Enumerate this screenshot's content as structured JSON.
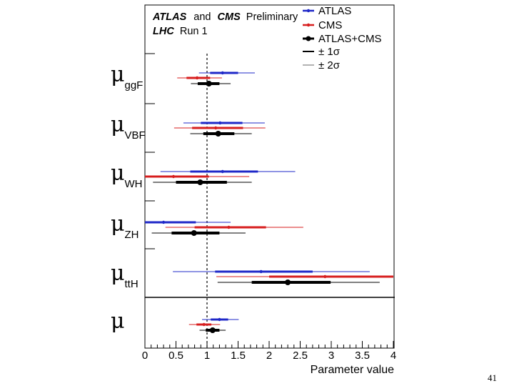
{
  "chart_data": {
    "type": "scatter",
    "variant": "forest-plot",
    "header": {
      "experiments": "ATLAS",
      "conjunction": "and",
      "experiment2": "CMS",
      "status": "Preliminary",
      "machine": "LHC",
      "run": "Run 1"
    },
    "xlabel": "Parameter value",
    "xlim": [
      0,
      4
    ],
    "xticks": [
      "0",
      "0.5",
      "1",
      "1.5",
      "2",
      "2.5",
      "3",
      "3.5",
      "4"
    ],
    "reference_line": 1,
    "parameters": [
      {
        "symbol": "μ",
        "subscript": "ggF"
      },
      {
        "symbol": "μ",
        "subscript": "VBF"
      },
      {
        "symbol": "μ",
        "subscript": "WH"
      },
      {
        "symbol": "μ",
        "subscript": "ZH"
      },
      {
        "symbol": "μ",
        "subscript": "ttH"
      },
      {
        "symbol": "μ",
        "subscript": ""
      }
    ],
    "series": [
      {
        "name": "ATLAS",
        "color": "#1f28c8",
        "points": [
          {
            "value": 1.25,
            "sigma1": [
              1.05,
              1.5
            ],
            "sigma2": [
              0.87,
              1.77
            ]
          },
          {
            "value": 1.21,
            "sigma1": [
              0.9,
              1.57
            ],
            "sigma2": [
              0.62,
              1.93
            ]
          },
          {
            "value": 1.25,
            "sigma1": [
              0.73,
              1.82
            ],
            "sigma2": [
              0.25,
              2.42
            ]
          },
          {
            "value": 0.3,
            "sigma1": [
              0.0,
              0.82
            ],
            "sigma2": [
              0.0,
              1.38
            ]
          },
          {
            "value": 1.87,
            "sigma1": [
              1.13,
              2.7
            ],
            "sigma2": [
              0.45,
              3.62
            ]
          },
          {
            "value": 1.2,
            "sigma1": [
              1.06,
              1.34
            ],
            "sigma2": [
              0.92,
              1.51
            ]
          }
        ]
      },
      {
        "name": "CMS",
        "color": "#d71e1e",
        "points": [
          {
            "value": 0.84,
            "sigma1": [
              0.67,
              1.05
            ],
            "sigma2": [
              0.52,
              1.24
            ]
          },
          {
            "value": 1.14,
            "sigma1": [
              0.76,
              1.58
            ],
            "sigma2": [
              0.47,
              1.94
            ]
          },
          {
            "value": 0.46,
            "sigma1": [
              0.0,
              1.03
            ],
            "sigma2": [
              0.0,
              1.68
            ]
          },
          {
            "value": 1.35,
            "sigma1": [
              0.8,
              1.95
            ],
            "sigma2": [
              0.33,
              2.55
            ]
          },
          {
            "value": 2.9,
            "sigma1": [
              2.0,
              4.0
            ],
            "sigma2": [
              1.15,
              4.0
            ]
          },
          {
            "value": 0.95,
            "sigma1": [
              0.83,
              1.07
            ],
            "sigma2": [
              0.71,
              1.21
            ]
          }
        ]
      },
      {
        "name": "ATLAS+CMS",
        "color": "#000000",
        "points": [
          {
            "value": 1.03,
            "sigma1": [
              0.85,
              1.2
            ],
            "sigma2": [
              0.74,
              1.38
            ]
          },
          {
            "value": 1.18,
            "sigma1": [
              0.94,
              1.44
            ],
            "sigma2": [
              0.73,
              1.72
            ]
          },
          {
            "value": 0.89,
            "sigma1": [
              0.5,
              1.32
            ],
            "sigma2": [
              0.13,
              1.72
            ]
          },
          {
            "value": 0.79,
            "sigma1": [
              0.43,
              1.2
            ],
            "sigma2": [
              0.11,
              1.62
            ]
          },
          {
            "value": 2.3,
            "sigma1": [
              1.72,
              2.99
            ],
            "sigma2": [
              1.17,
              3.78
            ]
          },
          {
            "value": 1.09,
            "sigma1": [
              0.98,
              1.2
            ],
            "sigma2": [
              0.88,
              1.3
            ]
          }
        ]
      }
    ],
    "legend": {
      "position": "top-right",
      "entries": [
        "ATLAS",
        "CMS",
        "ATLAS+CMS",
        "± 1σ",
        "± 2σ"
      ]
    }
  },
  "page_number": "41"
}
